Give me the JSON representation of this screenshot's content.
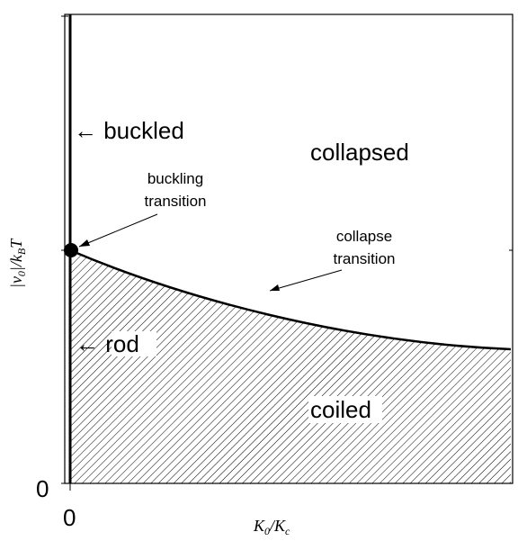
{
  "regions": {
    "buckled": "← buckled",
    "collapsed": "collapsed",
    "rod": "← rod",
    "coiled": "coiled"
  },
  "annotations": {
    "buckling": [
      "buckling",
      "transition"
    ],
    "collapse": [
      "collapse",
      "transition"
    ]
  },
  "axes": {
    "x_tick": "0",
    "y_tick": "0",
    "x_label": [
      "K",
      "0",
      "/K",
      "c"
    ],
    "y_label": [
      "|v",
      "0",
      "|/k",
      "B",
      "T"
    ]
  }
}
